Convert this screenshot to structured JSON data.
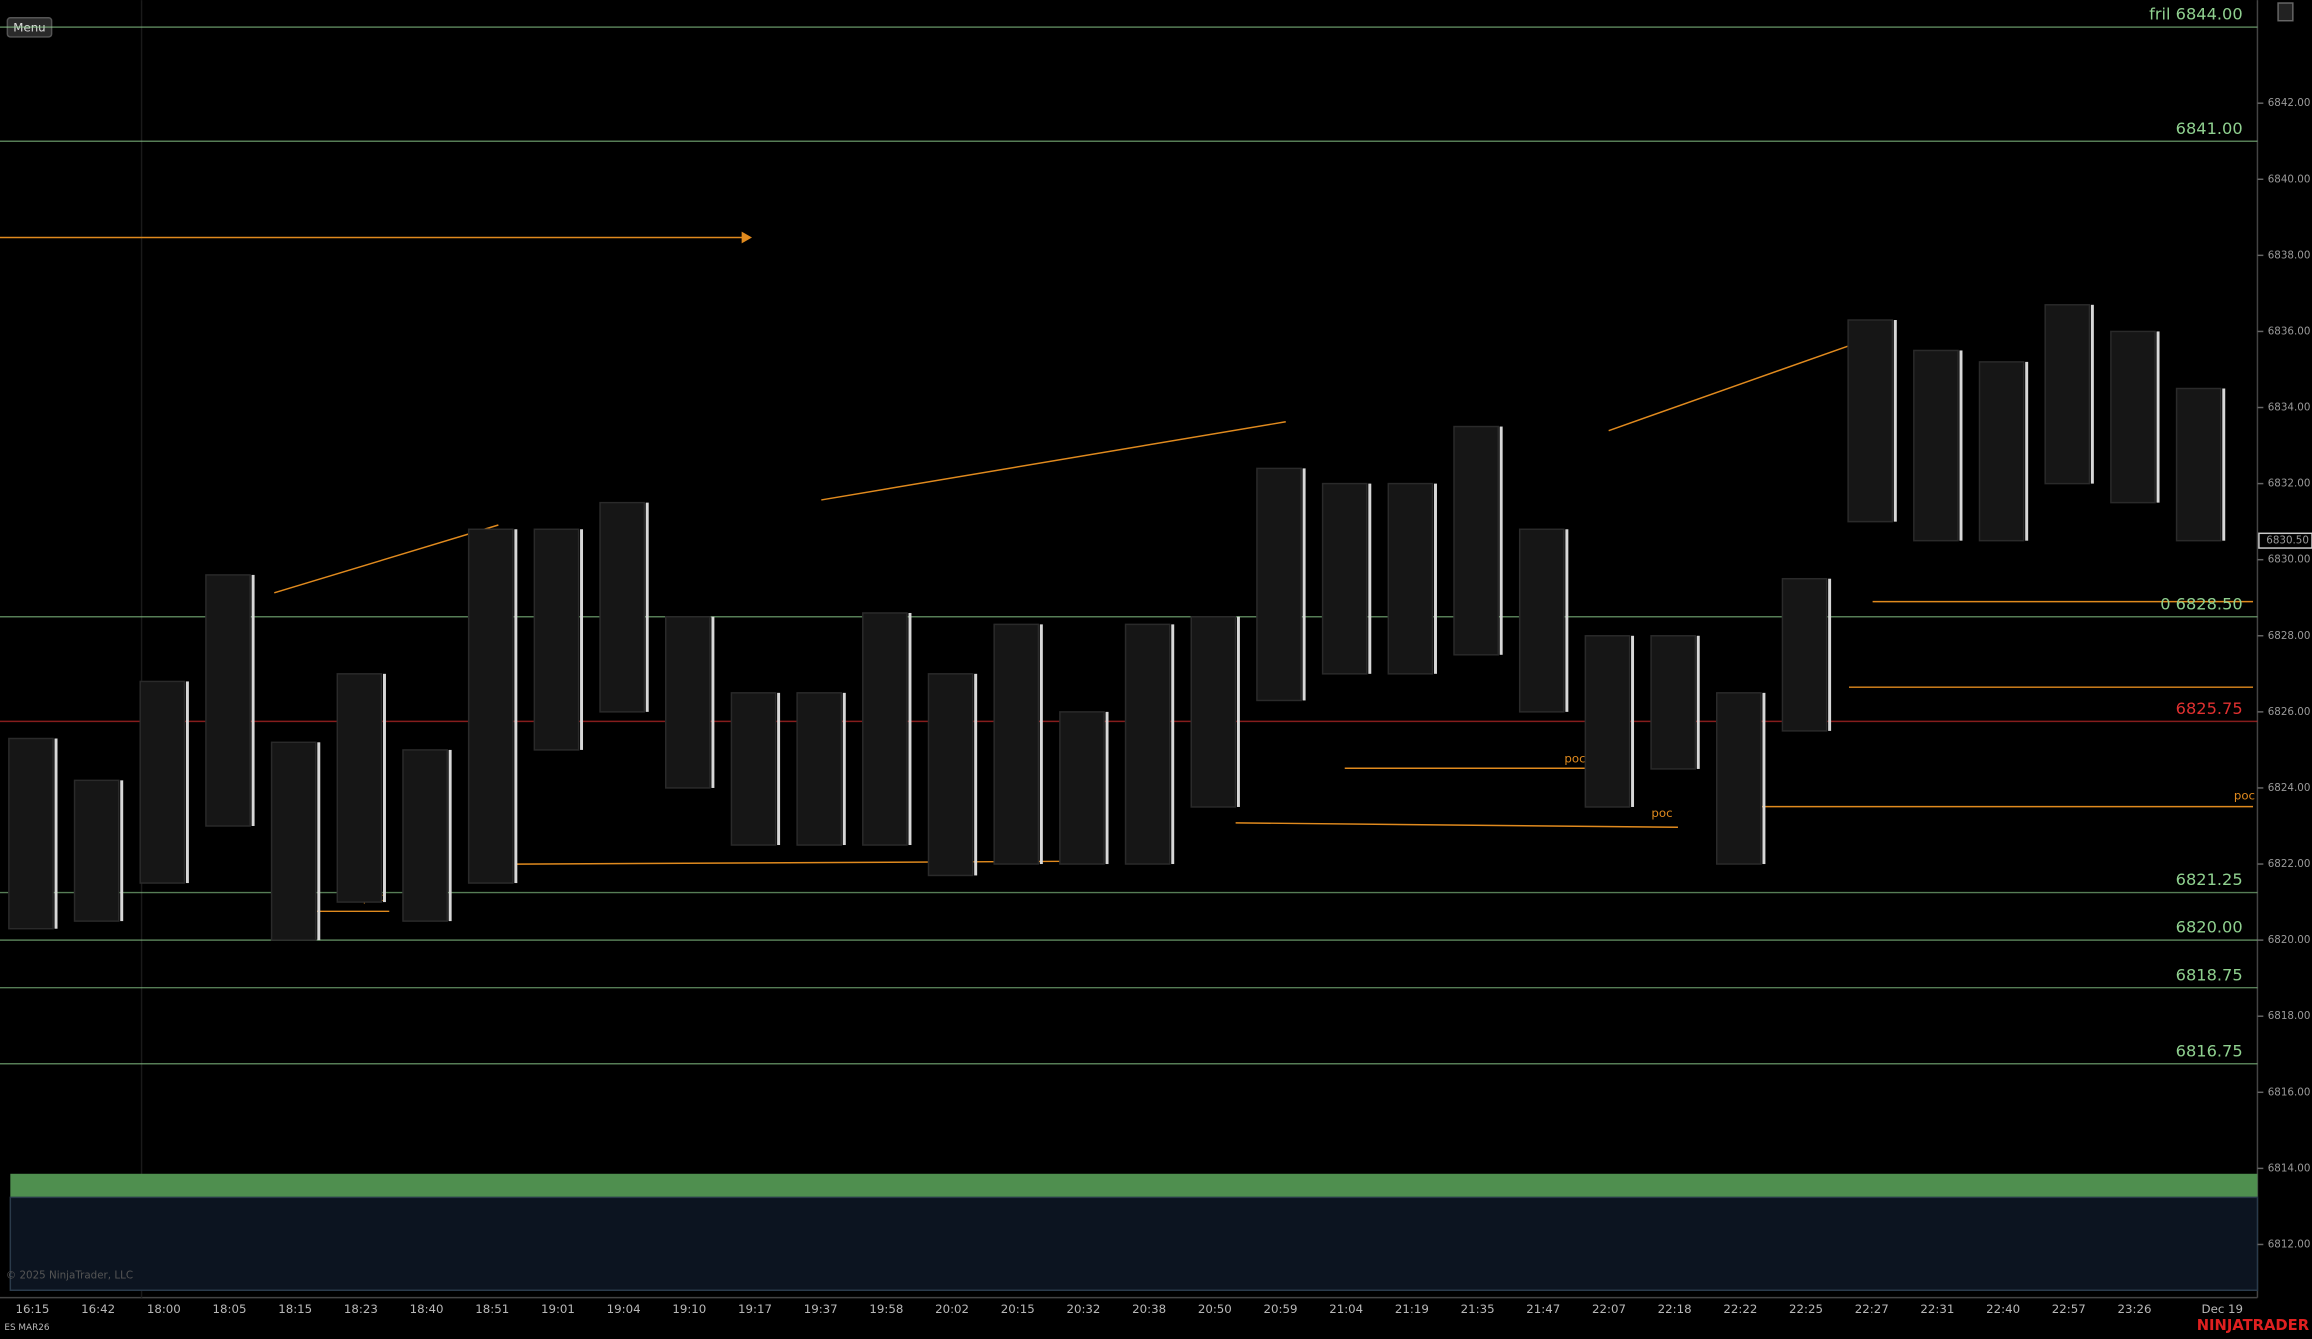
{
  "menu": "Menu",
  "instrument": "ES MAR26",
  "brand": "NINJATRADER",
  "copyright": "© 2025 NinjaTrader, LLC",
  "poc": "poc",
  "price_axis": {
    "ylim": [
      6810.68,
      6844.71
    ],
    "ticks": [
      {
        "value": 6842,
        "label": "6842.00"
      },
      {
        "value": 6840,
        "label": "6840.00"
      },
      {
        "value": 6838,
        "label": "6838.00"
      },
      {
        "value": 6836,
        "label": "6836.00"
      },
      {
        "value": 6834,
        "label": "6834.00"
      },
      {
        "value": 6832,
        "label": "6832.00"
      },
      {
        "value": 6830,
        "label": "6830.00"
      },
      {
        "value": 6828,
        "label": "6828.00"
      },
      {
        "value": 6826,
        "label": "6826.00"
      },
      {
        "value": 6824,
        "label": "6824.00"
      },
      {
        "value": 6822,
        "label": "6822.00"
      },
      {
        "value": 6820,
        "label": "6820.00"
      },
      {
        "value": 6818,
        "label": "6818.00"
      },
      {
        "value": 6816,
        "label": "6816.00"
      },
      {
        "value": 6814,
        "label": "6814.00"
      },
      {
        "value": 6812,
        "label": "6812.00"
      }
    ],
    "current_price": {
      "value": 6830.5,
      "label": "6830.50"
    }
  },
  "levels": [
    {
      "value": 6844,
      "label": "fril 6844.00",
      "color": "#8fd08f"
    },
    {
      "value": 6841,
      "label": "6841.00",
      "color": "#8fd08f"
    },
    {
      "value": 6828.5,
      "label": "0 6828.50",
      "color": "#8fd08f"
    },
    {
      "value": 6825.75,
      "label": "6825.75",
      "color": "#e03030"
    },
    {
      "value": 6821.25,
      "label": "6821.25",
      "color": "#8fd08f"
    },
    {
      "value": 6820,
      "label": "6820.00",
      "color": "#8fd08f"
    },
    {
      "value": 6818.75,
      "label": "6818.75",
      "color": "#8fd08f"
    },
    {
      "value": 6816.75,
      "label": "6816.75",
      "color": "#8fd08f"
    }
  ],
  "time_labels": [
    "16:15",
    "16:42",
    "18:00",
    "18:05",
    "18:15",
    "18:23",
    "18:40",
    "18:51",
    "19:01",
    "19:04",
    "19:10",
    "19:17",
    "19:37",
    "19:58",
    "20:02",
    "20:15",
    "20:32",
    "20:38",
    "20:50",
    "20:59",
    "21:04",
    "21:19",
    "21:35",
    "21:47",
    "22:07",
    "22:18",
    "22:22",
    "22:25",
    "22:27",
    "22:31",
    "22:40",
    "22:57",
    "23:26",
    "Dec 19"
  ],
  "bars": [
    {
      "high": 6825.3,
      "low": 6820.3
    },
    {
      "high": 6824.2,
      "low": 6820.5
    },
    {
      "high": 6826.8,
      "low": 6821.5
    },
    {
      "high": 6829.6,
      "low": 6823
    },
    {
      "high": 6825.2,
      "low": 6820
    },
    {
      "high": 6827,
      "low": 6821
    },
    {
      "high": 6825,
      "low": 6820.5
    },
    {
      "high": 6830.8,
      "low": 6821.5
    },
    {
      "high": 6830.8,
      "low": 6825
    },
    {
      "high": 6831.5,
      "low": 6826
    },
    {
      "high": 6828.5,
      "low": 6824
    },
    {
      "high": 6826.5,
      "low": 6822.5
    },
    {
      "high": 6826.5,
      "low": 6822.5
    },
    {
      "high": 6828.6,
      "low": 6822.5
    },
    {
      "high": 6827,
      "low": 6821.7
    },
    {
      "high": 6828.3,
      "low": 6822
    },
    {
      "high": 6826,
      "low": 6822
    },
    {
      "high": 6828.3,
      "low": 6822
    },
    {
      "high": 6828.5,
      "low": 6823.5
    },
    {
      "high": 6832.4,
      "low": 6826.3
    },
    {
      "high": 6832,
      "low": 6827
    },
    {
      "high": 6832,
      "low": 6827
    },
    {
      "high": 6833.5,
      "low": 6827.5
    },
    {
      "high": 6830.8,
      "low": 6826
    },
    {
      "high": 6828,
      "low": 6823.5
    },
    {
      "high": 6828,
      "low": 6824.5
    },
    {
      "high": 6826.5,
      "low": 6822
    },
    {
      "high": 6829.5,
      "low": 6825.5
    },
    {
      "high": 6836.3,
      "low": 6831
    },
    {
      "high": 6835.5,
      "low": 6830.5
    },
    {
      "high": 6835.2,
      "low": 6830.5
    },
    {
      "high": 6836.7,
      "low": 6832
    },
    {
      "high": 6836,
      "low": 6831.5
    },
    {
      "high": 6834.5,
      "low": 6830.5
    }
  ]
}
